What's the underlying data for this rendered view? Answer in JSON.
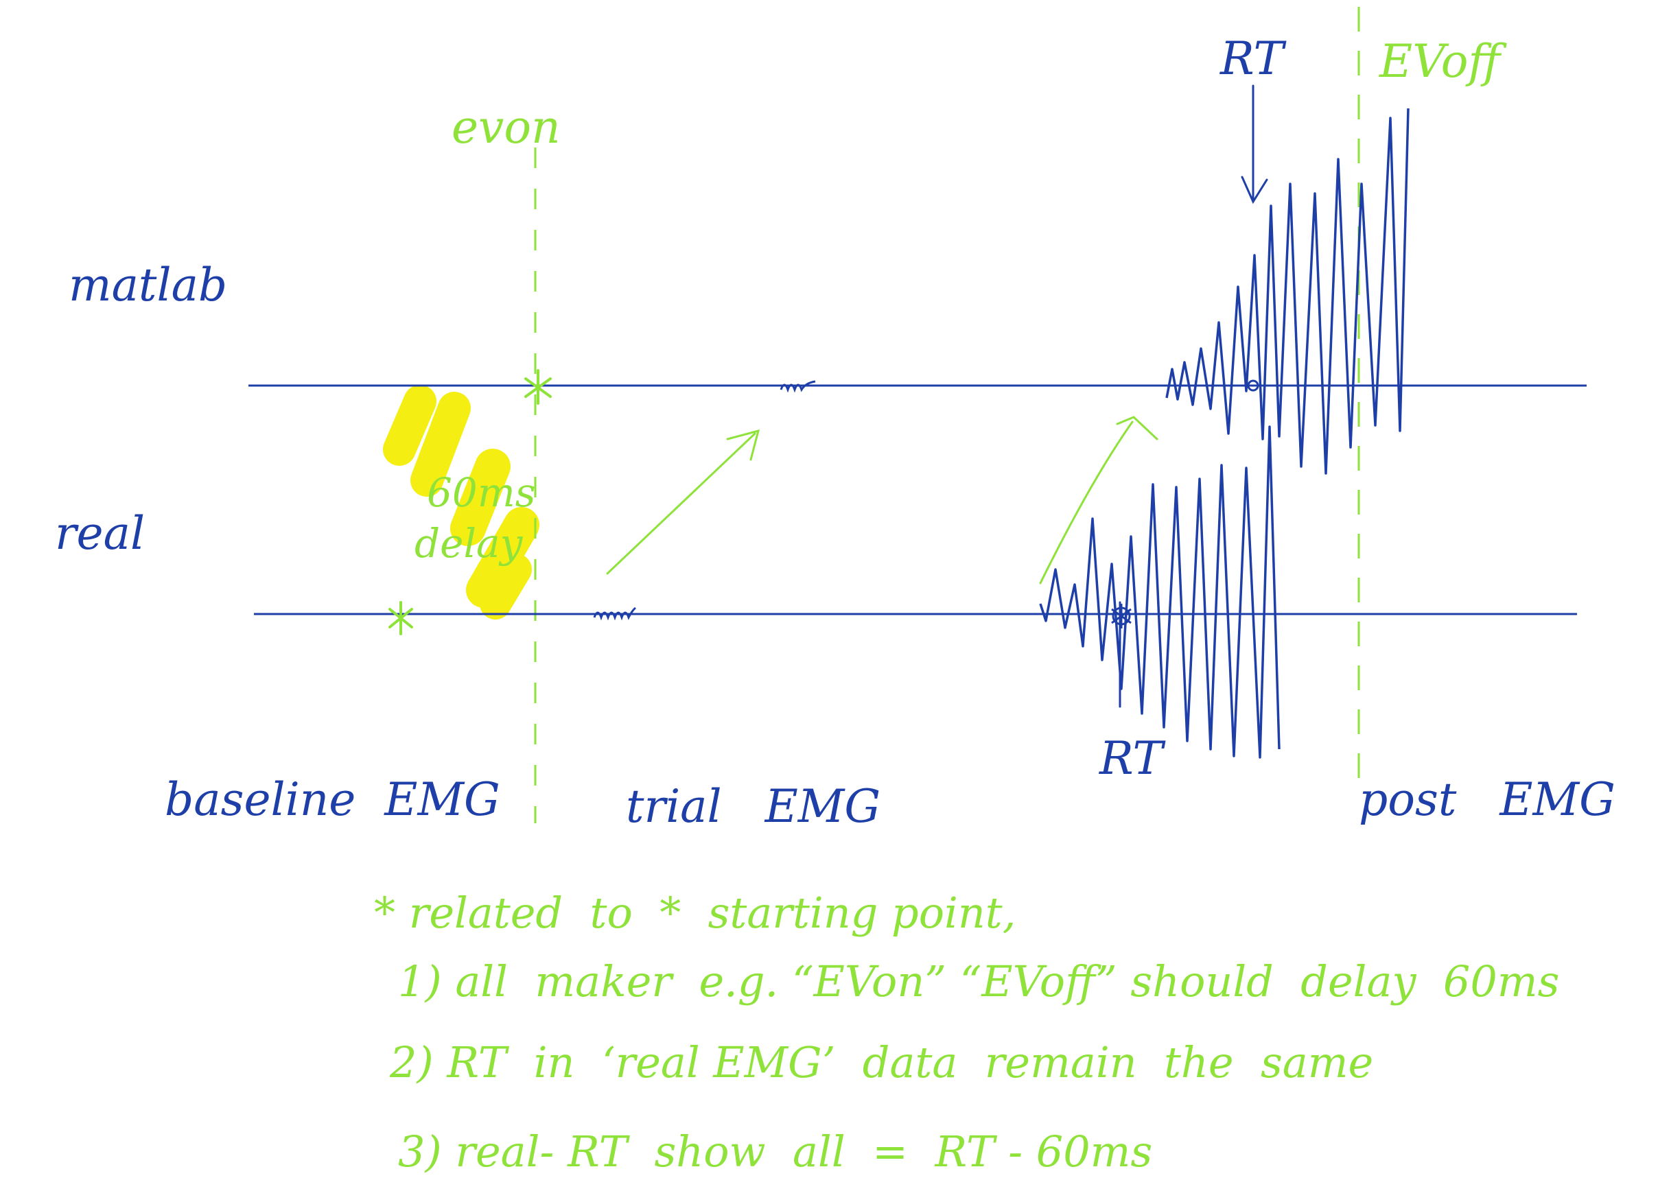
{
  "rows": {
    "matlab": "matlab",
    "real": "real"
  },
  "markers": {
    "ev_on": "evon",
    "ev_off": "EVoff",
    "rt_top": "RT",
    "rt_bottom": "RT"
  },
  "delay_label": {
    "line1": "60ms",
    "line2": "delay"
  },
  "segments": {
    "baseline": "baseline  EMG",
    "trial": "trial   EMG",
    "post": "post   EMG"
  },
  "notes": {
    "line0": "* related  to  *  starting point,",
    "line1": "1) all  maker  e.g. “EVon” “EVoff” should  delay  60ms",
    "line2": "2) RT  in  ‘real EMG’  data  remain  the  same",
    "line3": "3) real- RT  show  all  =  RT - 60ms"
  },
  "colors": {
    "ink_blue": "#1f3fa8",
    "ink_green": "#8fe23a",
    "highlight_yellow": "#f4ee12"
  }
}
